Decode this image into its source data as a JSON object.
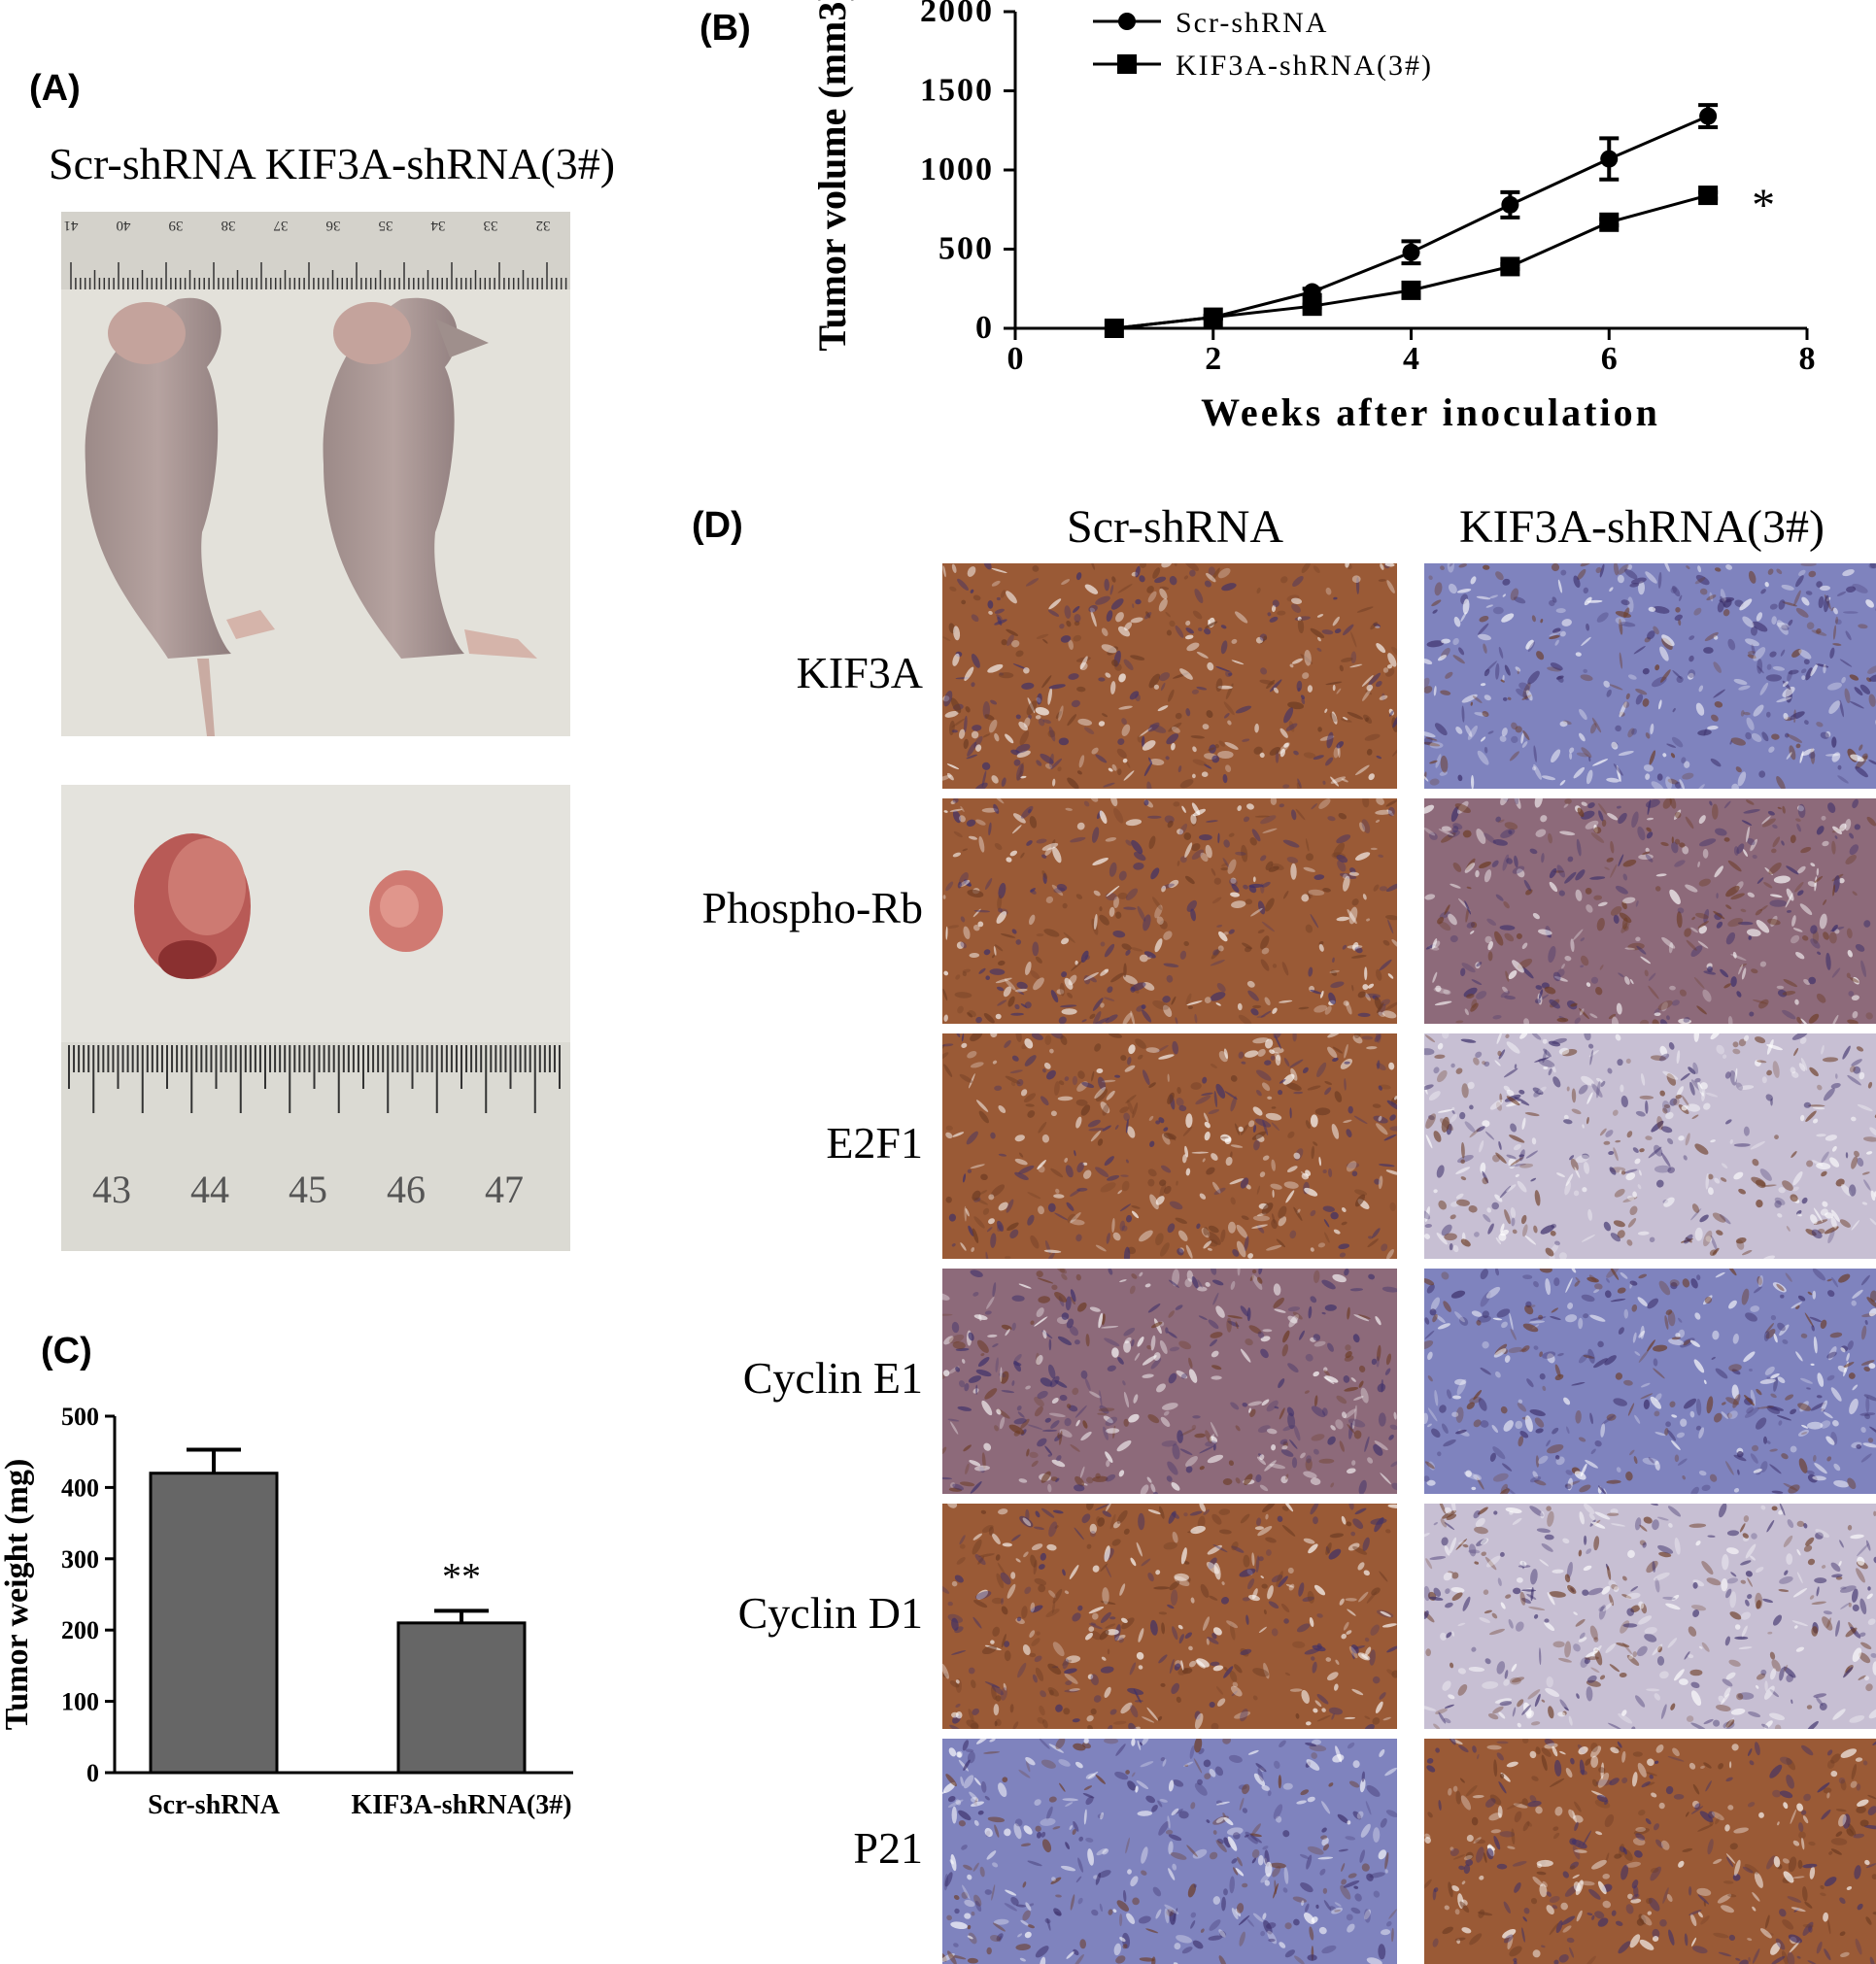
{
  "panels": {
    "A": {
      "letter": "(A)",
      "caption": "Scr-shRNA KIF3A-shRNA(3#)",
      "ruler_top_numbers": [
        "41",
        "40",
        "39",
        "38",
        "37",
        "36",
        "35",
        "34",
        "33",
        "32"
      ],
      "ruler_bottom_numbers": [
        "43",
        "44",
        "45",
        "46",
        "47"
      ]
    },
    "B": {
      "letter": "(B)"
    },
    "C": {
      "letter": "(C)"
    },
    "D": {
      "letter": "(D)",
      "col_headers": [
        "Scr-shRNA",
        "KIF3A-shRNA(3#)"
      ],
      "row_labels": [
        "KIF3A",
        "Phospho-Rb",
        "E2F1",
        "Cyclin E1",
        "Cyclin D1",
        "P21"
      ],
      "stain_colors": {
        "brown": "#9a5a36",
        "blue": "#7f83be",
        "mixed": "#8d6a7a",
        "light": "#c7bfd3"
      },
      "stain_pattern": [
        [
          "brown",
          "blue"
        ],
        [
          "brown",
          "mixed"
        ],
        [
          "brown",
          "light"
        ],
        [
          "mixed",
          "blue"
        ],
        [
          "brown",
          "light"
        ],
        [
          "blue",
          "brown"
        ]
      ]
    }
  },
  "chart_data": [
    {
      "type": "line",
      "panel": "(B)",
      "xlabel": "Weeks after inoculation",
      "ylabel": "Tumor volume (mm3)",
      "xlim": [
        0,
        8
      ],
      "ylim": [
        0,
        2000
      ],
      "xticks": [
        "0",
        "2",
        "4",
        "6",
        "8"
      ],
      "yticks": [
        "0",
        "500",
        "1000",
        "1500",
        "2000"
      ],
      "legend_position": "top-left",
      "annotation": "*",
      "series": [
        {
          "name": "Scr-shRNA",
          "marker": "circle",
          "x": [
            1,
            2,
            3,
            4,
            5,
            6,
            7
          ],
          "y": [
            0,
            70,
            230,
            480,
            780,
            1070,
            1340
          ],
          "err": [
            0,
            10,
            20,
            70,
            80,
            130,
            70
          ]
        },
        {
          "name": "KIF3A-shRNA(3#)",
          "marker": "square",
          "x": [
            1,
            2,
            3,
            4,
            5,
            6,
            7
          ],
          "y": [
            0,
            70,
            140,
            240,
            390,
            670,
            840
          ],
          "err": [
            0,
            5,
            10,
            15,
            15,
            20,
            20
          ]
        }
      ]
    },
    {
      "type": "bar",
      "panel": "(C)",
      "ylabel": "Tumor weight (mg)",
      "ylim": [
        0,
        500
      ],
      "yticks": [
        "0",
        "100",
        "200",
        "300",
        "400",
        "500"
      ],
      "categories": [
        "Scr-shRNA",
        "KIF3A-shRNA(3#)"
      ],
      "values": [
        420,
        210
      ],
      "err": [
        33,
        17
      ],
      "annotations": [
        "",
        "**"
      ],
      "bar_color": "#666666"
    }
  ]
}
